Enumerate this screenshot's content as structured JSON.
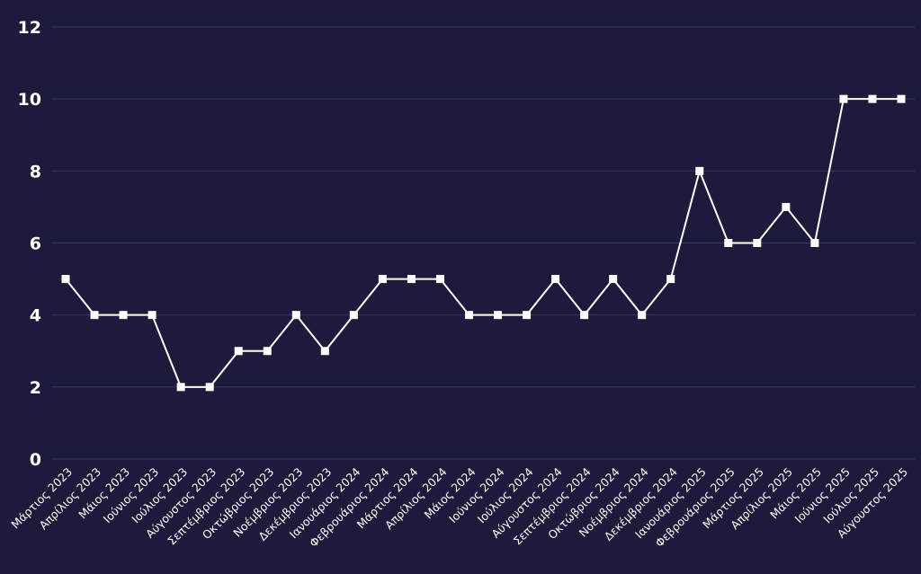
{
  "chart_data": {
    "type": "line",
    "title": "",
    "xlabel": "",
    "ylabel": "",
    "ylim": [
      0,
      12
    ],
    "yticks": [
      0,
      2,
      4,
      6,
      8,
      10,
      12
    ],
    "grid": true,
    "categories": [
      "Μάρτιος 2023",
      "Απρίλιος 2023",
      "Μάιος 2023",
      "Ιούνιος 2023",
      "Ιούλιος 2023",
      "Αύγουστος 2023",
      "Σεπτέμβριος 2023",
      "Οκτώβριος 2023",
      "Νοέμβριος 2023",
      "Δεκέμβριος 2023",
      "Ιανουάριος 2024",
      "Φεβρουάριος 2024",
      "Μάρτιος 2024",
      "Απρίλιος 2024",
      "Μάιος 2024",
      "Ιούνιος 2024",
      "Ιούλιος 2024",
      "Αύγουστος 2024",
      "Σεπτέμβριος 2024",
      "Οκτώβριος 2024",
      "Νοέμβριος 2024",
      "Δεκέμβριος 2024",
      "Ιανουάριος 2025",
      "Φεβρουάριος 2025",
      "Μάρτιος 2025",
      "Απρίλιος 2025",
      "Μάιος 2025",
      "Ιούνιος 2025",
      "Ιούλιος 2025",
      "Αύγουστος 2025"
    ],
    "values": [
      5,
      4,
      4,
      4,
      2,
      2,
      3,
      3,
      4,
      3,
      4,
      5,
      5,
      5,
      4,
      4,
      4,
      5,
      4,
      5,
      4,
      5,
      8,
      6,
      6,
      7,
      6,
      10,
      10,
      10
    ],
    "colors": {
      "background": "#1c1b3b",
      "line": "#ffffff",
      "grid": "#3a3964",
      "text": "#ffffff"
    },
    "marker": "square"
  }
}
